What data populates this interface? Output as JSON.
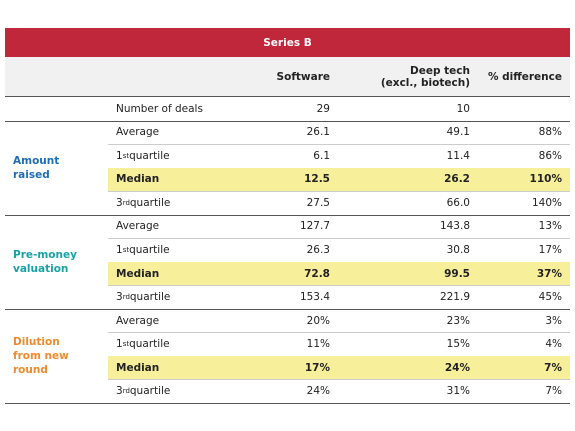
{
  "table": {
    "header": {
      "title": "Series B",
      "color": "#c0273a"
    },
    "columns": [
      "Software",
      "Deep tech\n(excl., biotech)",
      "% difference"
    ],
    "rows": [
      {
        "label": "Number of deals",
        "values": [
          "29",
          "10",
          ""
        ]
      }
    ],
    "groups": [
      {
        "name": "Amount raised",
        "color": "#1f6db3",
        "rows": [
          {
            "label": "Average",
            "values": [
              "26.1",
              "49.1",
              "88%"
            ]
          },
          {
            "label": "1st quartile",
            "values": [
              "6.1",
              "11.4",
              "86%"
            ]
          },
          {
            "label": "Median",
            "values": [
              "12.5",
              "26.2",
              "110%"
            ],
            "highlight": true
          },
          {
            "label": "3rd quartile",
            "values": [
              "27.5",
              "66.0",
              "140%"
            ]
          }
        ]
      },
      {
        "name": "Pre-money valuation",
        "color": "#17a3a6",
        "rows": [
          {
            "label": "Average",
            "values": [
              "127.7",
              "143.8",
              "13%"
            ]
          },
          {
            "label": "1st quartile",
            "values": [
              "26.3",
              "30.8",
              "17%"
            ]
          },
          {
            "label": "Median",
            "values": [
              "72.8",
              "99.5",
              "37%"
            ],
            "highlight": true
          },
          {
            "label": "3rd quartile",
            "values": [
              "153.4",
              "221.9",
              "45%"
            ]
          }
        ]
      },
      {
        "name": "Dilution from new round",
        "color": "#ee8a2a",
        "rows": [
          {
            "label": "Average",
            "values": [
              "20%",
              "23%",
              "3%"
            ]
          },
          {
            "label": "1st quartile",
            "values": [
              "11%",
              "15%",
              "4%"
            ]
          },
          {
            "label": "Median",
            "values": [
              "17%",
              "24%",
              "7%"
            ],
            "highlight": true
          },
          {
            "label": "3rd quartile",
            "values": [
              "24%",
              "31%",
              "7%"
            ]
          }
        ]
      }
    ]
  }
}
